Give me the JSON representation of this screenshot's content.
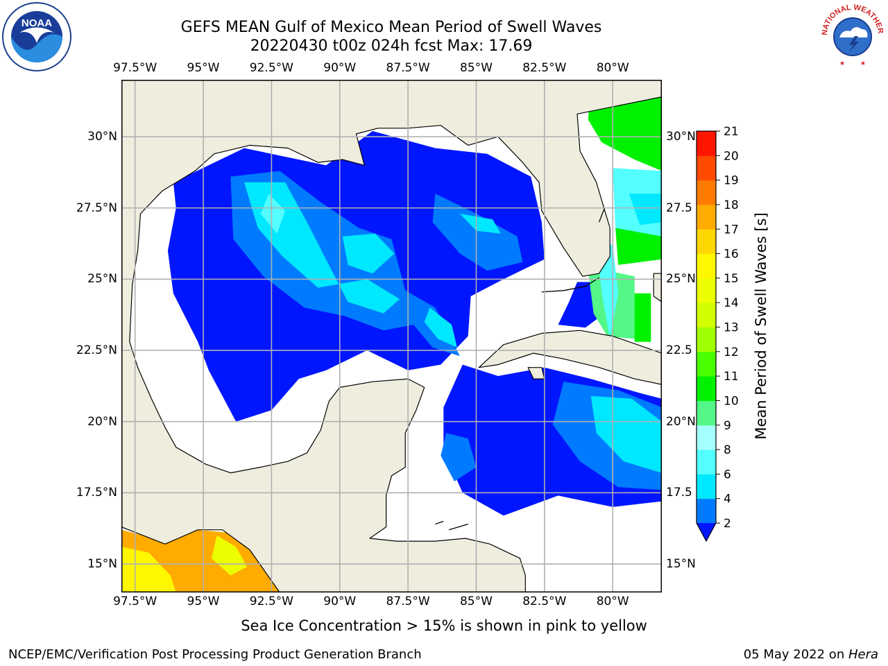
{
  "title": {
    "line1": "GEFS MEAN Gulf of Mexico Mean Period of Swell Waves",
    "line2": "20220430 t00z 024h fcst   Max: 17.69"
  },
  "logos": {
    "left": {
      "name": "noaa-logo",
      "text": "NOAA"
    },
    "right": {
      "name": "nws-logo",
      "text": "NATIONAL WEATHER SERVICE"
    }
  },
  "map": {
    "land_color": "#efedde",
    "grid_color": "#b0b0b0",
    "lon_labels": [
      "97.5°W",
      "95°W",
      "92.5°W",
      "90°W",
      "87.5°W",
      "85°W",
      "82.5°W",
      "80°W"
    ],
    "lon_values": [
      -97.5,
      -95,
      -92.5,
      -90,
      -87.5,
      -85,
      -82.5,
      -80
    ],
    "lat_labels": [
      "30°N",
      "27.5°N",
      "25°N",
      "22.5°N",
      "20°N",
      "17.5°N",
      "15°N"
    ],
    "lat_values": [
      30,
      27.5,
      25,
      22.5,
      20,
      17.5,
      15
    ],
    "right_lat_labels": [
      "30°N",
      "27.5",
      "25°N",
      "22.5",
      "20°N",
      "17.5",
      "15°N"
    ],
    "extent": {
      "lon_min": -98,
      "lon_max": -78.2,
      "lat_min": 14,
      "lat_max": 32
    }
  },
  "colorbar": {
    "label": "Mean Period of Swell Waves [s]",
    "ticks": [
      "2",
      "4",
      "6",
      "8",
      "9",
      "10",
      "11",
      "12",
      "13",
      "14",
      "15",
      "16",
      "17",
      "18",
      "19",
      "20",
      "21"
    ],
    "colors": [
      "#0016ff",
      "#007bff",
      "#00e8ff",
      "#53ffff",
      "#a6ffff",
      "#52f787",
      "#00f100",
      "#48ff00",
      "#a0ff00",
      "#d2ff00",
      "#ecff00",
      "#fff700",
      "#ffd700",
      "#ffab00",
      "#ff7b00",
      "#ff4a00",
      "#ff1600",
      "#f00000"
    ],
    "extend": "min",
    "under_color": "#0016ff"
  },
  "note": "Sea Ice Concentration > 15% is shown in pink to yellow",
  "footer": {
    "left": "NCEP/EMC/Verification Post Processing Product Generation Branch",
    "date": "05 May 2022 on ",
    "machine": "Hera"
  }
}
